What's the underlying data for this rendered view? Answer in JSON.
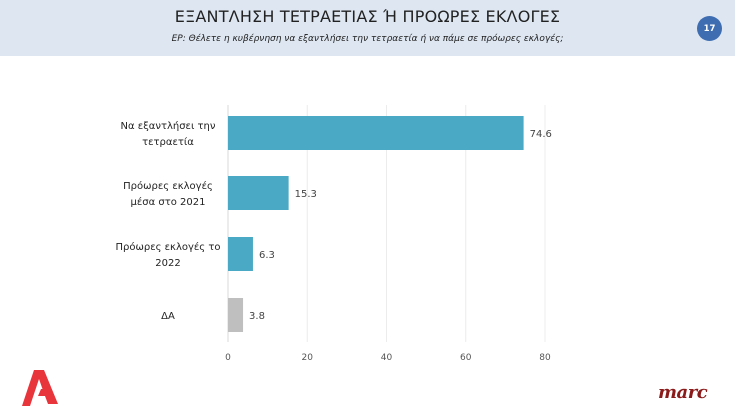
{
  "header": {
    "title": "ΕΞΑΝΤΛΗΣΗ ΤΕΤΡΑΕΤΙΑΣ Ή ΠΡΟΩΡΕΣ ΕΚΛΟΓΕΣ",
    "subtitle": "ΕΡ:  Θέλετε η κυβέρνηση να εξαντλήσει την τετραετία ή να πάμε σε πρόωρες εκλογές;",
    "page_number": "17"
  },
  "logos": {
    "left": "Alpha",
    "right": "marc"
  },
  "colors": {
    "bar_primary": "#4aaac5",
    "bar_other": "#bfbfbf",
    "header_bg": "#dde6f1",
    "badge": "#3e6db2",
    "alpha_red": "#e8343b",
    "marc_red": "#8b1a1a"
  },
  "chart_data": {
    "type": "bar",
    "orientation": "horizontal",
    "categories": [
      [
        "Να εξαντλήσει την",
        "τετραετία"
      ],
      [
        "Πρόωρες εκλογές",
        "μέσα στο 2021"
      ],
      [
        "Πρόωρες εκλογές το",
        "2022"
      ],
      [
        "ΔΑ"
      ]
    ],
    "values": [
      74.6,
      15.3,
      6.3,
      3.8
    ],
    "value_labels": [
      "74.6",
      "15.3",
      "6.3",
      "3.8"
    ],
    "bar_colors": [
      "#4aaac5",
      "#4aaac5",
      "#4aaac5",
      "#bfbfbf"
    ],
    "xlim": [
      0,
      80
    ],
    "xticks": [
      0,
      20,
      40,
      60,
      80
    ],
    "xtick_labels": [
      "0",
      "20",
      "40",
      "60",
      "80"
    ],
    "grid": true,
    "title": "",
    "xlabel": "",
    "ylabel": ""
  }
}
